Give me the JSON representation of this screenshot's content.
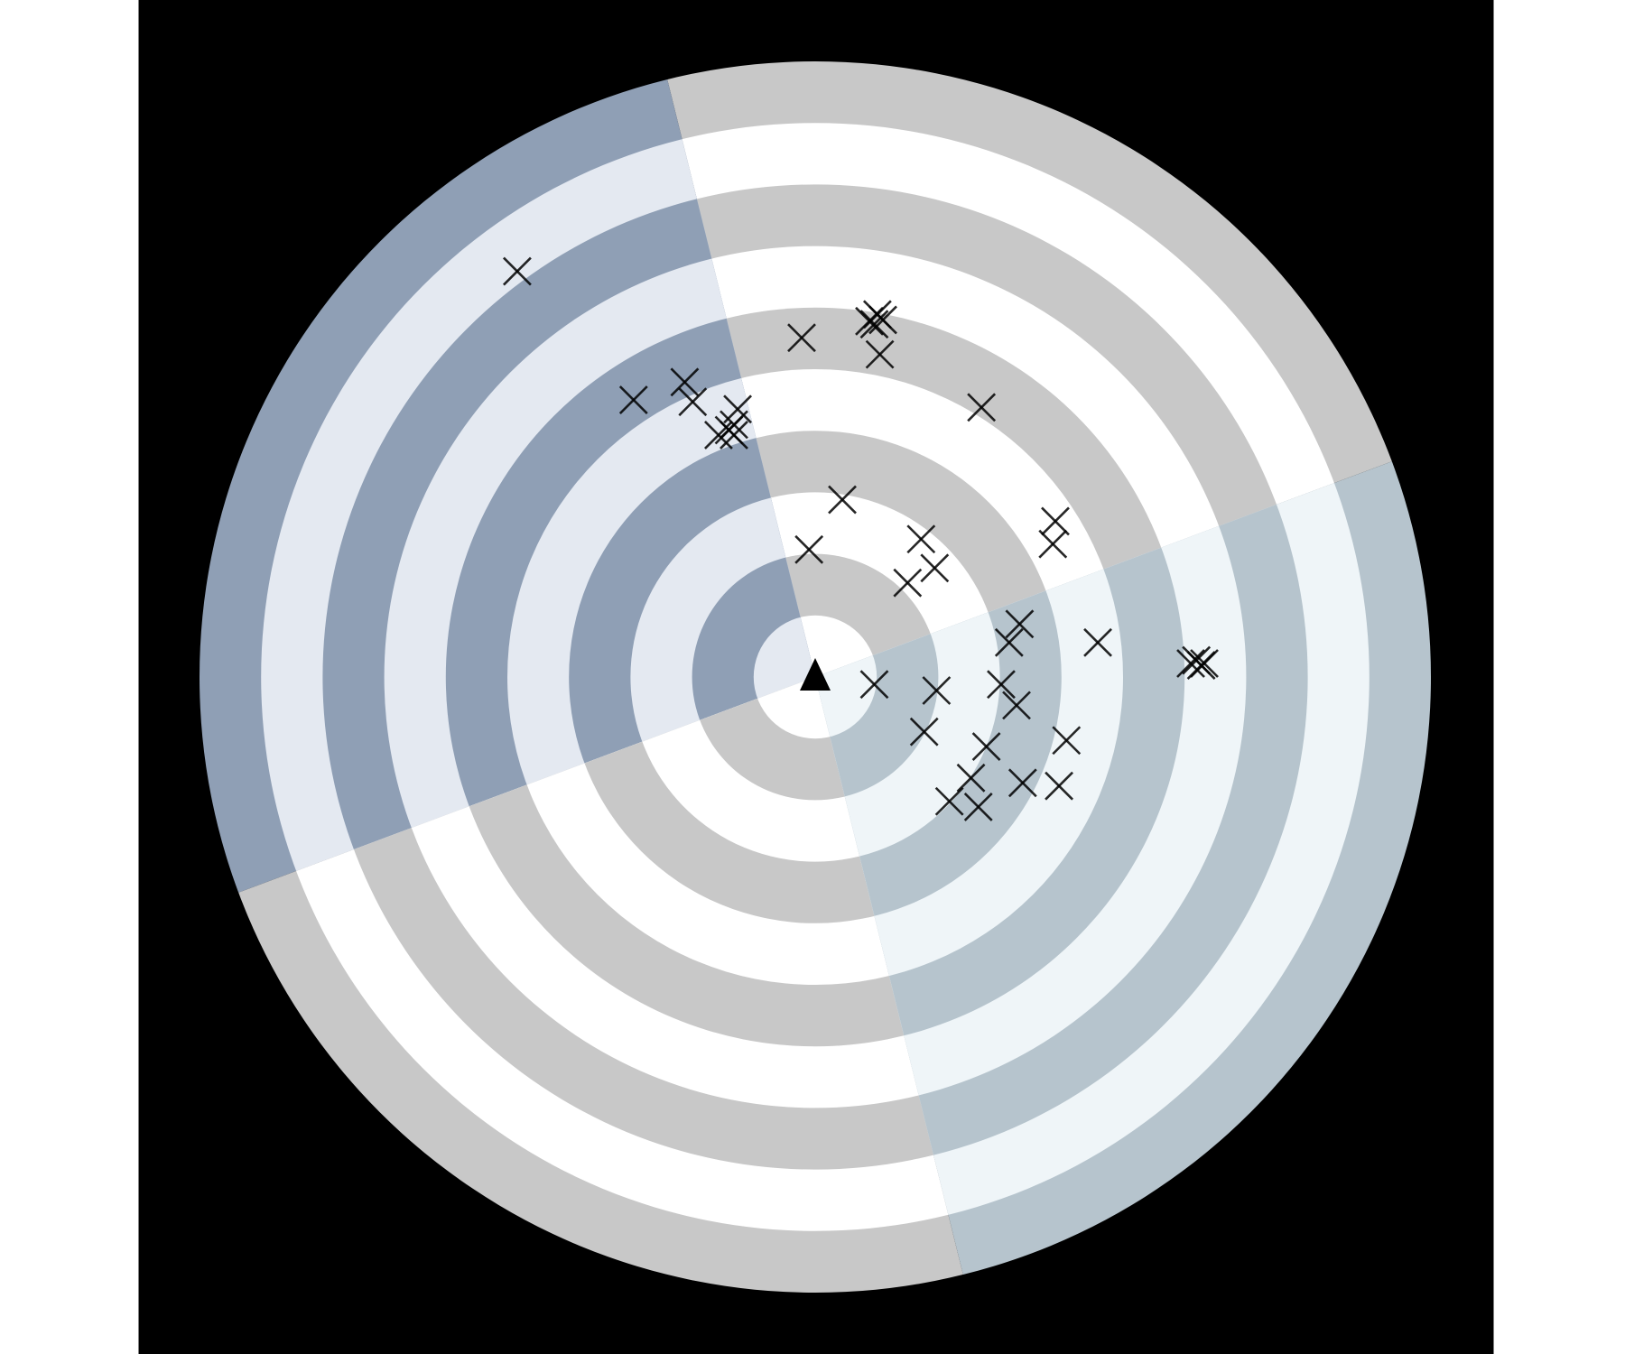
{
  "chart_data": {
    "type": "scatter",
    "rings": 10,
    "xlim": [
      -10,
      10
    ],
    "ylim": [
      -10,
      10
    ],
    "marker_color": "#000000",
    "x": [
      -4.84,
      -0.22,
      0.88,
      1.01,
      1.1,
      0.96,
      1.05,
      -2.95,
      -2.12,
      -1.99,
      -1.26,
      -1.32,
      -1.57,
      -1.32,
      -1.4,
      2.7,
      0.44,
      -0.1,
      1.72,
      1.94,
      1.5,
      3.9,
      3.86,
      3.32,
      3.15,
      4.59,
      6.19,
      6.27,
      6.1,
      6.32,
      0.96,
      1.97,
      3.02,
      3.27,
      1.77,
      2.78,
      4.08,
      2.53,
      3.37,
      3.96,
      2.18,
      2.65
    ],
    "y": [
      6.59,
      5.51,
      5.78,
      5.89,
      5.8,
      5.73,
      5.24,
      4.5,
      4.79,
      4.47,
      4.35,
      4.1,
      3.93,
      3.93,
      4.01,
      4.38,
      2.88,
      2.07,
      2.24,
      1.77,
      1.53,
      2.53,
      2.16,
      0.86,
      0.56,
      0.56,
      0.27,
      0.19,
      0.22,
      0.22,
      -0.12,
      -0.22,
      -0.12,
      -0.46,
      -0.89,
      -1.13,
      -1.03,
      -1.64,
      -1.72,
      -1.77,
      -2.02,
      -2.11
    ]
  }
}
